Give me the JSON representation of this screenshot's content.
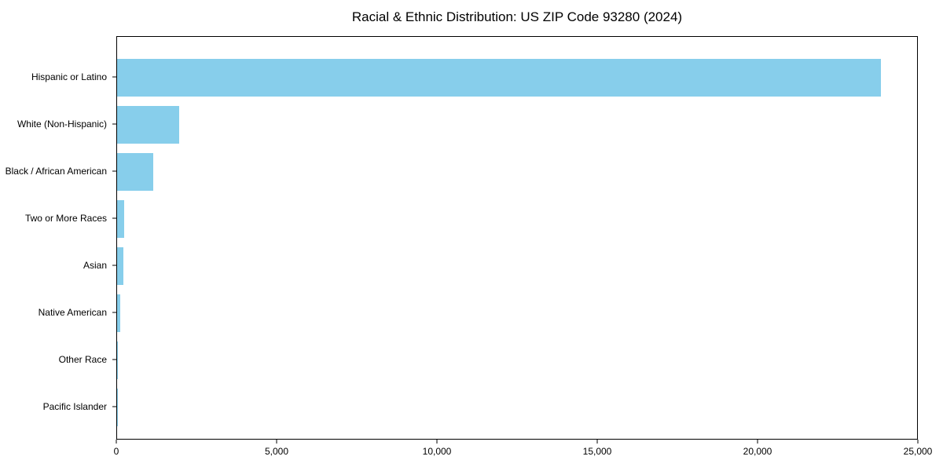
{
  "title": "Racial & Ethnic Distribution: US ZIP Code 93280 (2024)",
  "colors": {
    "bar": "#87CEEB",
    "axis": "#000000",
    "background": "#FFFFFF",
    "text": "#000000"
  },
  "chart_data": {
    "type": "bar",
    "orientation": "horizontal",
    "title": "Racial & Ethnic Distribution: US ZIP Code 93280 (2024)",
    "categories": [
      "Hispanic or Latino",
      "White (Non-Hispanic)",
      "Black / African American",
      "Two or More Races",
      "Asian",
      "Native American",
      "Other Race",
      "Pacific Islander"
    ],
    "values": [
      23870,
      1940,
      1130,
      210,
      185,
      110,
      15,
      5
    ],
    "xlabel": "",
    "ylabel": "",
    "xlim": [
      0,
      25000
    ],
    "x_ticks": [
      0,
      5000,
      10000,
      15000,
      20000,
      25000
    ],
    "x_tick_labels": [
      "0",
      "5,000",
      "10,000",
      "15,000",
      "20,000",
      "25,000"
    ],
    "grid": false,
    "legend": false,
    "bar_color": "#87CEEB"
  }
}
